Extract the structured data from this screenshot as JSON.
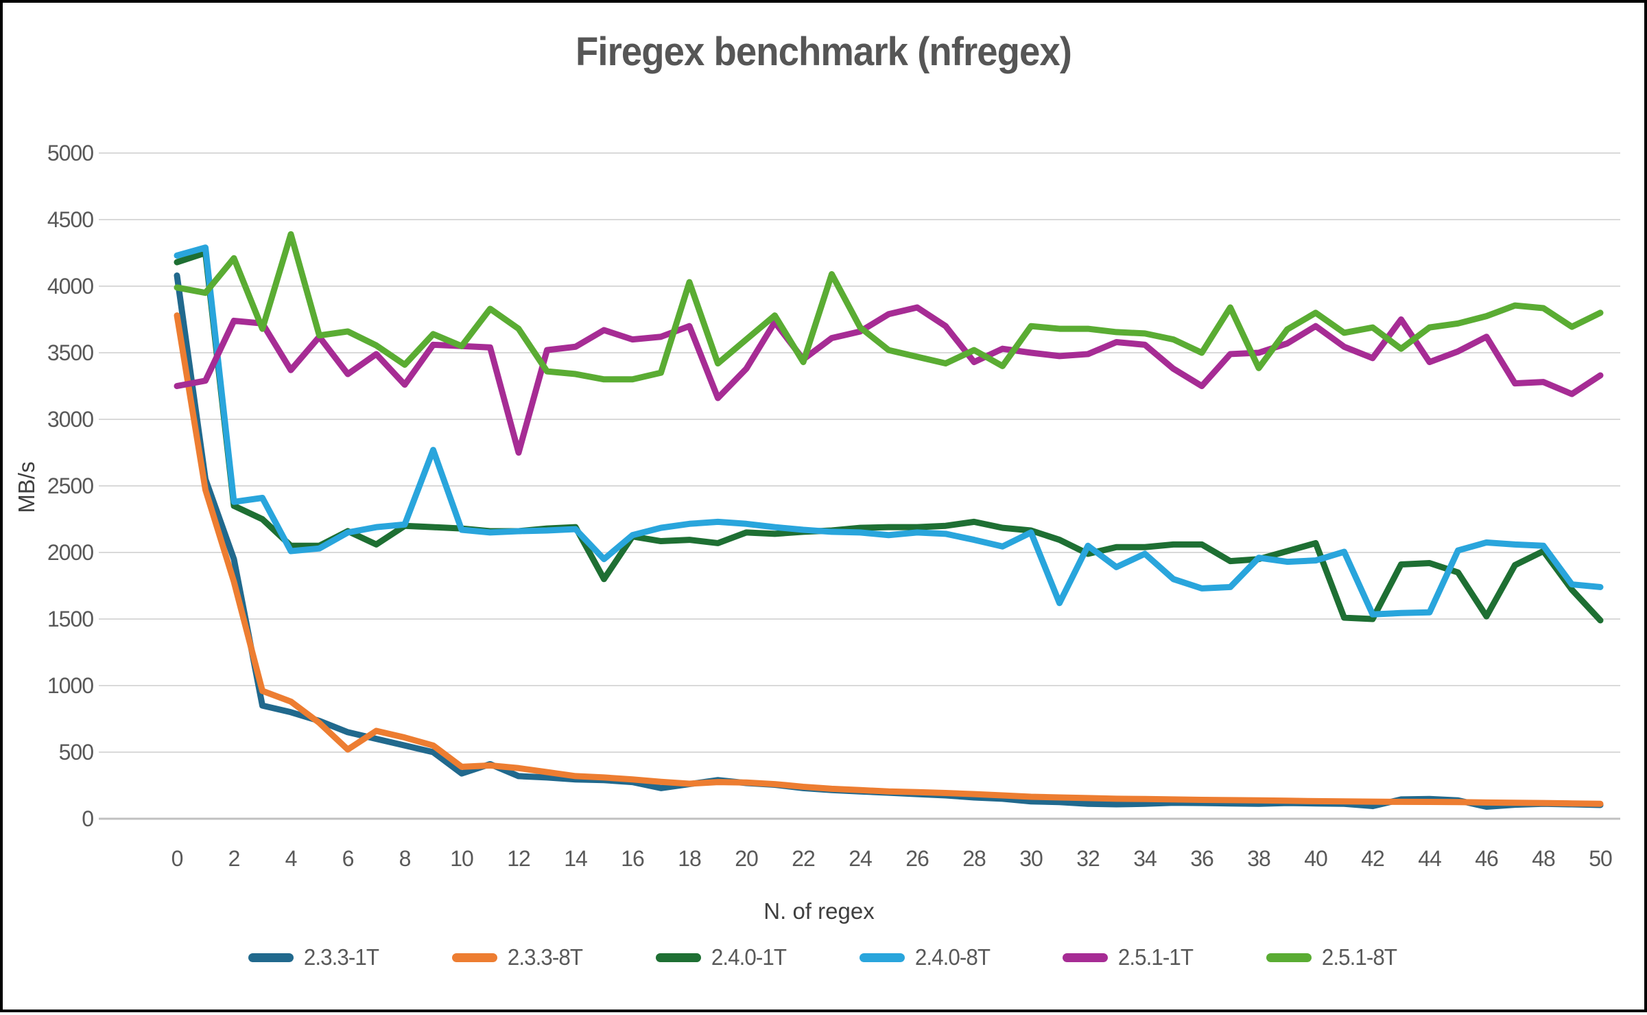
{
  "page": {
    "background_color": "#ffffff",
    "border_color": "#000000",
    "grid_color": "#d9d9d9",
    "axis_line_color": "#c0c0c0",
    "text_color": "#595959",
    "title_color": "#565656"
  },
  "chart_data": {
    "type": "line",
    "title": "Firegex benchmark (nfregex)",
    "xlabel": "N. of regex",
    "ylabel": "MB/s",
    "xlim": [
      0,
      50
    ],
    "ylim": [
      0,
      5000
    ],
    "grid": true,
    "legend_position": "bottom",
    "x_ticks": [
      0,
      2,
      4,
      6,
      8,
      10,
      12,
      14,
      16,
      18,
      20,
      22,
      24,
      26,
      28,
      30,
      32,
      34,
      36,
      38,
      40,
      42,
      44,
      46,
      48,
      50
    ],
    "y_ticks": [
      0,
      500,
      1000,
      1500,
      2000,
      2500,
      3000,
      3500,
      4000,
      4500,
      5000
    ],
    "x": [
      0,
      1,
      2,
      3,
      4,
      5,
      6,
      7,
      8,
      9,
      10,
      11,
      12,
      13,
      14,
      15,
      16,
      17,
      18,
      19,
      20,
      21,
      22,
      23,
      24,
      25,
      26,
      27,
      28,
      29,
      30,
      31,
      32,
      33,
      34,
      35,
      36,
      37,
      38,
      39,
      40,
      41,
      42,
      43,
      44,
      45,
      46,
      47,
      48,
      49,
      50
    ],
    "series": [
      {
        "name": "2.3.3-1T",
        "color": "#21698d",
        "values": [
          4080,
          2550,
          1950,
          850,
          800,
          735,
          650,
          600,
          550,
          500,
          340,
          410,
          320,
          310,
          295,
          290,
          275,
          230,
          260,
          290,
          268,
          255,
          230,
          215,
          205,
          195,
          185,
          175,
          160,
          150,
          130,
          125,
          112,
          108,
          112,
          120,
          118,
          115,
          112,
          118,
          115,
          112,
          95,
          145,
          148,
          138,
          90,
          105,
          112,
          108,
          103
        ]
      },
      {
        "name": "2.3.3-8T",
        "color": "#ed7d31",
        "values": [
          3780,
          2470,
          1780,
          960,
          880,
          720,
          520,
          660,
          610,
          550,
          390,
          400,
          380,
          350,
          320,
          310,
          295,
          277,
          263,
          275,
          272,
          260,
          240,
          225,
          215,
          205,
          200,
          193,
          185,
          175,
          165,
          160,
          155,
          150,
          148,
          145,
          142,
          140,
          138,
          135,
          132,
          130,
          128,
          127,
          126,
          125,
          122,
          120,
          118,
          115,
          112
        ]
      },
      {
        "name": "2.4.0-1T",
        "color": "#1e6f33",
        "values": [
          4180,
          4250,
          2350,
          2250,
          2050,
          2050,
          2160,
          2060,
          2200,
          2190,
          2180,
          2160,
          2160,
          2180,
          2190,
          1800,
          2120,
          2085,
          2095,
          2070,
          2150,
          2140,
          2155,
          2165,
          2185,
          2190,
          2190,
          2200,
          2230,
          2185,
          2165,
          2095,
          1990,
          2040,
          2040,
          2060,
          2060,
          1935,
          1950,
          2010,
          2070,
          1510,
          1500,
          1910,
          1920,
          1850,
          1520,
          1905,
          2010,
          1720,
          1490
        ]
      },
      {
        "name": "2.4.0-8T",
        "color": "#29a5dc",
        "values": [
          4230,
          4290,
          2380,
          2410,
          2010,
          2030,
          2150,
          2190,
          2210,
          2770,
          2170,
          2150,
          2160,
          2165,
          2175,
          1950,
          2130,
          2185,
          2215,
          2230,
          2215,
          2190,
          2170,
          2155,
          2150,
          2130,
          2150,
          2140,
          2095,
          2045,
          2150,
          1620,
          2050,
          1890,
          1990,
          1800,
          1730,
          1740,
          1960,
          1930,
          1940,
          2005,
          1535,
          1545,
          1550,
          2015,
          2075,
          2060,
          2050,
          1760,
          1740
        ]
      },
      {
        "name": "2.5.1-1T",
        "color": "#a62c94",
        "values": [
          3250,
          3290,
          3740,
          3720,
          3370,
          3620,
          3340,
          3490,
          3260,
          3560,
          3550,
          3540,
          2750,
          3520,
          3545,
          3670,
          3600,
          3620,
          3700,
          3160,
          3380,
          3730,
          3450,
          3610,
          3660,
          3790,
          3840,
          3700,
          3430,
          3530,
          3500,
          3475,
          3490,
          3580,
          3560,
          3380,
          3250,
          3490,
          3500,
          3570,
          3700,
          3545,
          3460,
          3750,
          3430,
          3510,
          3620,
          3270,
          3280,
          3190,
          3330
        ]
      },
      {
        "name": "2.5.1-8T",
        "color": "#5aac33",
        "values": [
          3990,
          3950,
          4210,
          3680,
          4390,
          3630,
          3660,
          3555,
          3410,
          3640,
          3550,
          3830,
          3680,
          3360,
          3340,
          3300,
          3300,
          3350,
          4030,
          3420,
          3600,
          3780,
          3430,
          4090,
          3690,
          3520,
          3470,
          3420,
          3520,
          3400,
          3700,
          3680,
          3680,
          3655,
          3645,
          3600,
          3500,
          3840,
          3385,
          3675,
          3800,
          3650,
          3690,
          3530,
          3690,
          3720,
          3775,
          3855,
          3835,
          3695,
          3800
        ]
      }
    ]
  }
}
